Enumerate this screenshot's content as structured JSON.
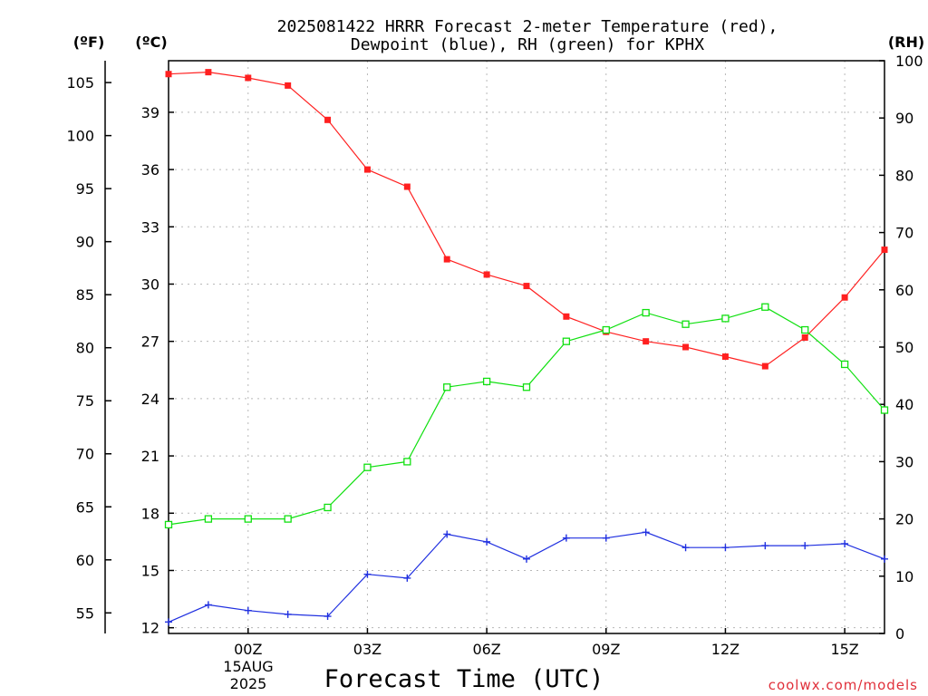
{
  "chart_data": {
    "type": "line",
    "title_line1": "2025081422 HRRR Forecast 2-meter Temperature (red),",
    "title_line2": "Dewpoint (blue), RH (green) for KPHX",
    "xlabel": "Forecast Time (UTC)",
    "x_tick_labels": [
      "00Z",
      "03Z",
      "06Z",
      "09Z",
      "12Z",
      "15Z"
    ],
    "x_tick_hours": [
      24,
      27,
      30,
      33,
      36,
      39
    ],
    "x_date_label": [
      "15AUG",
      "2025"
    ],
    "x_range_hours": [
      22,
      40
    ],
    "x_hours": [
      22,
      23,
      24,
      25,
      26,
      27,
      28,
      29,
      30,
      31,
      32,
      33,
      34,
      35,
      36,
      37,
      38,
      39,
      40
    ],
    "left_axis_f": {
      "unit": "(ºF)",
      "ticks": [
        55,
        60,
        65,
        70,
        75,
        80,
        85,
        90,
        95,
        100,
        105
      ]
    },
    "left_axis_c": {
      "unit": "(ºC)",
      "ticks": [
        12,
        15,
        18,
        21,
        24,
        27,
        30,
        33,
        36,
        39
      ],
      "range": [
        11.7,
        41.7
      ]
    },
    "right_axis_rh": {
      "unit": "(RH)",
      "ticks": [
        0,
        10,
        20,
        30,
        40,
        50,
        60,
        70,
        80,
        90,
        100
      ],
      "range": [
        0,
        100
      ]
    },
    "series": [
      {
        "name": "Temperature",
        "unit": "C",
        "color": "#ff2020",
        "marker": "filled-square",
        "values": [
          41.0,
          41.1,
          40.8,
          40.4,
          38.6,
          36.0,
          35.1,
          31.3,
          30.5,
          29.9,
          28.3,
          27.5,
          27.0,
          26.7,
          26.2,
          25.7,
          27.2,
          29.3,
          31.8
        ]
      },
      {
        "name": "Dewpoint",
        "unit": "C",
        "color": "#2030e0",
        "marker": "plus",
        "values": [
          12.3,
          13.2,
          12.9,
          12.7,
          12.6,
          14.8,
          14.6,
          16.9,
          16.5,
          15.6,
          16.7,
          16.7,
          17.0,
          16.2,
          16.2,
          16.3,
          16.3,
          16.4,
          15.6
        ]
      },
      {
        "name": "RH",
        "unit": "%",
        "color": "#10e010",
        "marker": "open-square",
        "values": [
          19,
          20,
          20,
          20,
          22,
          29,
          30,
          43,
          44,
          43,
          51,
          53,
          56,
          54,
          55,
          57,
          53,
          47,
          39
        ]
      }
    ],
    "grid": true
  },
  "credit": "coolwx.com/models"
}
